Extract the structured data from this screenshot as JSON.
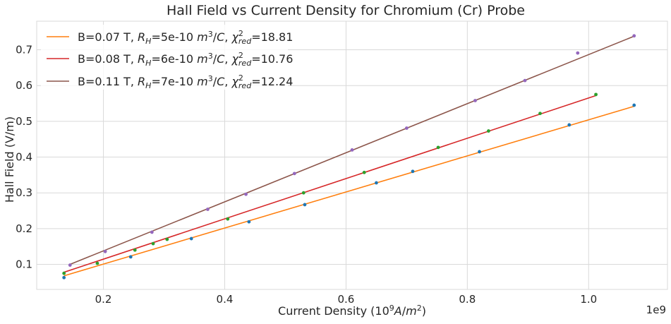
{
  "chart_data": {
    "type": "scatter",
    "title": "Hall Field vs Current Density for Chromium (Cr) Probe",
    "xlabel": "Current Density (10^9 A/m^2)",
    "ylabel": "Hall Field (V/m)",
    "x_offset_label": "1e9",
    "xlim": [
      0.09,
      1.13
    ],
    "ylim": [
      0.03,
      0.78
    ],
    "xticks": [
      0.2,
      0.4,
      0.6,
      0.8,
      1.0
    ],
    "xtick_labels": [
      "0.2",
      "0.4",
      "0.6",
      "0.8",
      "1.0"
    ],
    "yticks": [
      0.1,
      0.2,
      0.3,
      0.4,
      0.5,
      0.6,
      0.7
    ],
    "ytick_labels": [
      "0.1",
      "0.2",
      "0.3",
      "0.4",
      "0.5",
      "0.6",
      "0.7"
    ],
    "grid": true,
    "legend_position": "top-left",
    "series": [
      {
        "name": "B=0.07 T, R_H=5e-10 m^3/C, χ²_red=18.81",
        "line_color": "#ff7f0e",
        "marker_color": "#1f77b4",
        "fit": [
          [
            0.135,
            0.068
          ],
          [
            1.075,
            0.542
          ]
        ],
        "points": [
          [
            0.135,
            0.063
          ],
          [
            0.245,
            0.121
          ],
          [
            0.345,
            0.172
          ],
          [
            0.44,
            0.219
          ],
          [
            0.532,
            0.267
          ],
          [
            0.65,
            0.328
          ],
          [
            0.71,
            0.36
          ],
          [
            0.82,
            0.415
          ],
          [
            0.968,
            0.49
          ],
          [
            1.075,
            0.545
          ]
        ]
      },
      {
        "name": "B=0.08 T, R_H=6e-10 m^3/C, χ²_red=10.76",
        "line_color": "#d62728",
        "marker_color": "#2ca02c",
        "fit": [
          [
            0.135,
            0.078
          ],
          [
            1.012,
            0.572
          ]
        ],
        "points": [
          [
            0.135,
            0.075
          ],
          [
            0.19,
            0.103
          ],
          [
            0.252,
            0.14
          ],
          [
            0.282,
            0.158
          ],
          [
            0.305,
            0.17
          ],
          [
            0.405,
            0.227
          ],
          [
            0.53,
            0.3
          ],
          [
            0.63,
            0.357
          ],
          [
            0.752,
            0.427
          ],
          [
            0.835,
            0.473
          ],
          [
            0.92,
            0.522
          ],
          [
            1.012,
            0.575
          ]
        ]
      },
      {
        "name": "B=0.11 T, R_H=7e-10 m^3/C, χ²_red=12.24",
        "line_color": "#8c564b",
        "marker_color": "#9467bd",
        "fit": [
          [
            0.145,
            0.1
          ],
          [
            1.075,
            0.738
          ]
        ],
        "points": [
          [
            0.145,
            0.098
          ],
          [
            0.203,
            0.136
          ],
          [
            0.28,
            0.19
          ],
          [
            0.372,
            0.254
          ],
          [
            0.435,
            0.296
          ],
          [
            0.515,
            0.354
          ],
          [
            0.61,
            0.42
          ],
          [
            0.7,
            0.481
          ],
          [
            0.813,
            0.558
          ],
          [
            0.895,
            0.614
          ],
          [
            0.982,
            0.691
          ],
          [
            1.075,
            0.739
          ]
        ]
      }
    ]
  }
}
